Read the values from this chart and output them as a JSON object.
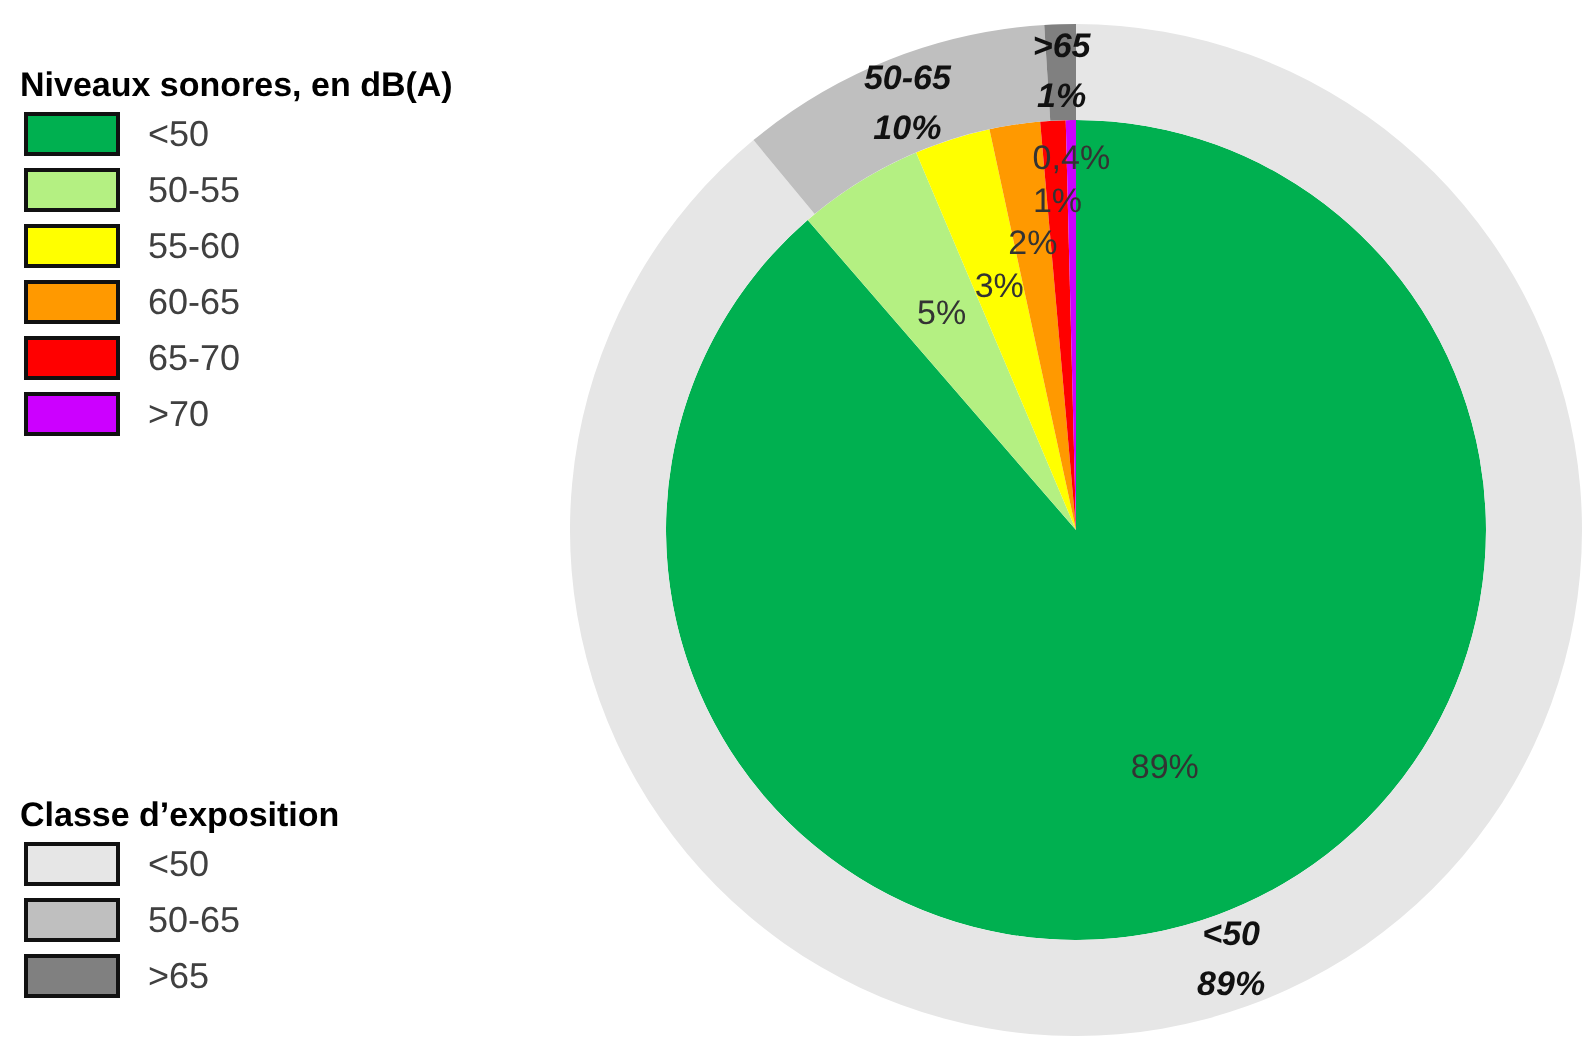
{
  "chart_data": [
    {
      "type": "pie",
      "legend_title": "Niveaux sonores, en dB(A)",
      "legend": "top left",
      "categories": [
        "<50",
        "50-55",
        "55-60",
        "60-65",
        "65-70",
        ">70"
      ],
      "values": [
        89,
        5,
        3,
        2,
        1,
        0.4
      ],
      "colors": [
        "#00b050",
        "#b4f082",
        "#ffff00",
        "#ff9900",
        "#ff0000",
        "#cc00ff"
      ],
      "value_labels": [
        "89%",
        "5%",
        "3%",
        "2%",
        "1%",
        "0,4%"
      ]
    },
    {
      "type": "donut",
      "legend_title": "Classe d’exposition",
      "legend": "bottom left",
      "categories": [
        "<50",
        "50-65",
        ">65"
      ],
      "values": [
        89,
        10,
        1
      ],
      "colors": [
        "#e6e6e6",
        "#bfbfbf",
        "#808080"
      ],
      "value_labels": [
        "89%",
        "10%",
        "1%"
      ]
    }
  ]
}
